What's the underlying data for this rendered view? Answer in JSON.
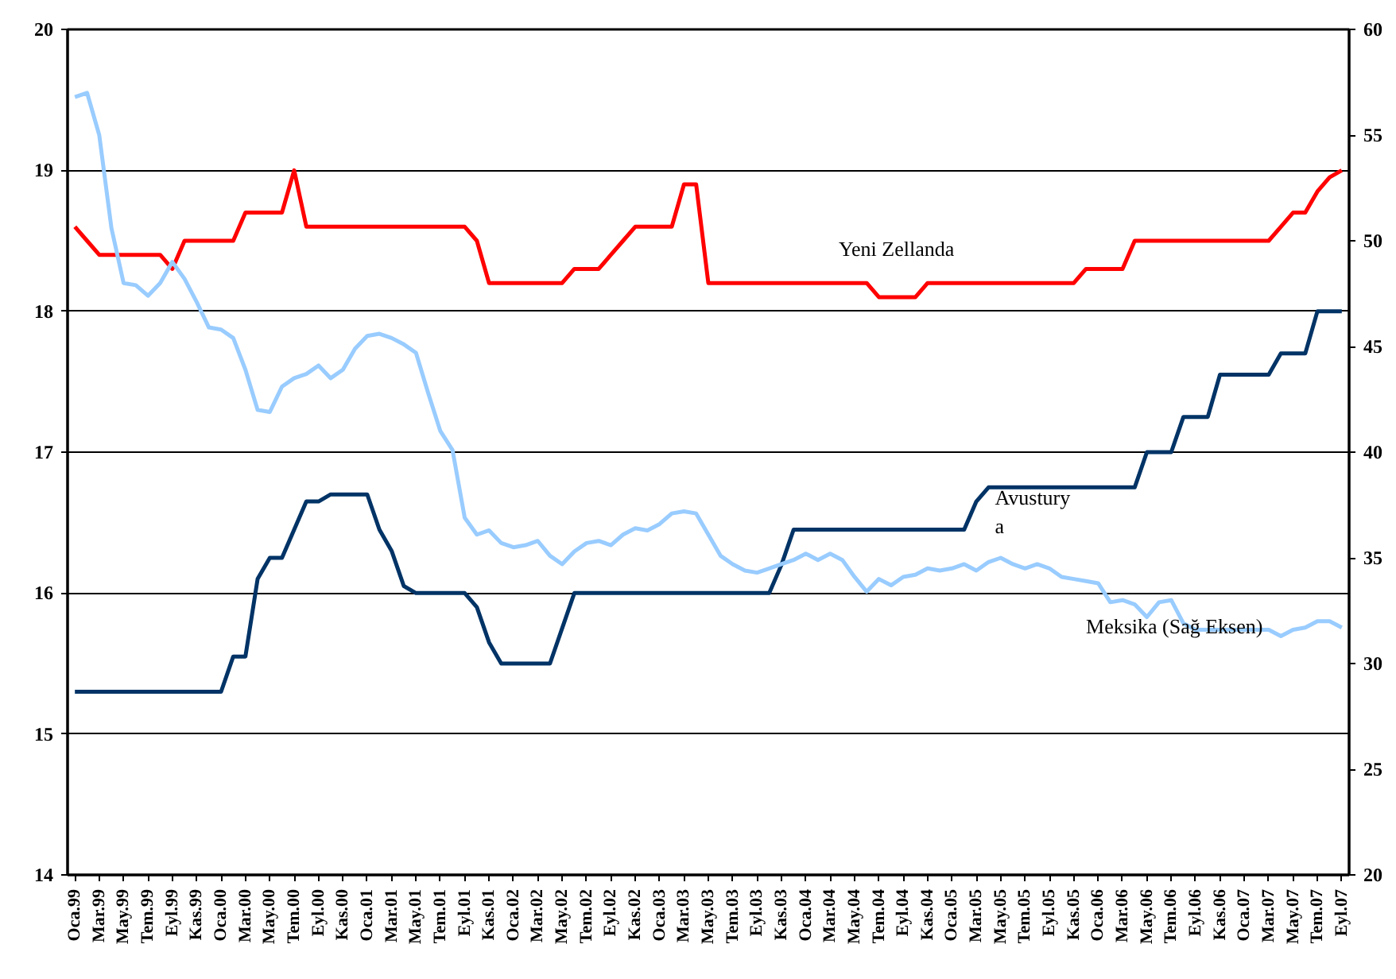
{
  "chart_data": {
    "type": "line",
    "categories": [
      "Oca.99",
      null,
      "Mar.99",
      null,
      "May.99",
      null,
      "Tem.99",
      null,
      "Eyl.99",
      null,
      "Kas.99",
      null,
      "Oca.00",
      null,
      "Mar.00",
      null,
      "May.00",
      null,
      "Tem.00",
      null,
      "Eyl.00",
      null,
      "Kas.00",
      null,
      "Oca.01",
      null,
      "Mar.01",
      null,
      "May.01",
      null,
      "Tem.01",
      null,
      "Eyl.01",
      null,
      "Kas.01",
      null,
      "Oca.02",
      null,
      "Mar.02",
      null,
      "May.02",
      null,
      "Tem.02",
      null,
      "Eyl.02",
      null,
      "Kas.02",
      null,
      "Oca.03",
      null,
      "Mar.03",
      null,
      "May.03",
      null,
      "Tem.03",
      null,
      "Eyl.03",
      null,
      "Kas.03",
      null,
      "Oca.04",
      null,
      "Mar.04",
      null,
      "May.04",
      null,
      "Tem.04",
      null,
      "Eyl.04",
      null,
      "Kas.04",
      null,
      "Oca.05",
      null,
      "Mar.05",
      null,
      "May.05",
      null,
      "Tem.05",
      null,
      "Eyl.05",
      null,
      "Kas.05",
      null,
      "Oca.06",
      null,
      "Mar.06",
      null,
      "May.06",
      null,
      "Tem.06",
      null,
      "Eyl.06",
      null,
      "Kas.06",
      null,
      "Oca.07",
      null,
      "Mar.07",
      null,
      "May.07",
      null,
      "Tem.07",
      null,
      "Eyl.07"
    ],
    "series": [
      {
        "name": "Yeni Zellanda",
        "color": "#ff0000",
        "values": [
          18.6,
          18.5,
          18.4,
          18.4,
          18.4,
          18.4,
          18.4,
          18.4,
          18.3,
          18.5,
          18.5,
          18.5,
          18.5,
          18.5,
          18.7,
          18.7,
          18.7,
          18.7,
          19.0,
          18.6,
          18.6,
          18.6,
          18.6,
          18.6,
          18.6,
          18.6,
          18.6,
          18.6,
          18.6,
          18.6,
          18.6,
          18.6,
          18.6,
          18.5,
          18.2,
          18.2,
          18.2,
          18.2,
          18.2,
          18.2,
          18.2,
          18.3,
          18.3,
          18.3,
          18.4,
          18.5,
          18.6,
          18.6,
          18.6,
          18.6,
          18.9,
          18.9,
          18.2,
          18.2,
          18.2,
          18.2,
          18.2,
          18.2,
          18.2,
          18.2,
          18.2,
          18.2,
          18.2,
          18.2,
          18.2,
          18.2,
          18.1,
          18.1,
          18.1,
          18.1,
          18.2,
          18.2,
          18.2,
          18.2,
          18.2,
          18.2,
          18.2,
          18.2,
          18.2,
          18.2,
          18.2,
          18.2,
          18.2,
          18.3,
          18.3,
          18.3,
          18.3,
          18.5,
          18.5,
          18.5,
          18.5,
          18.5,
          18.5,
          18.5,
          18.5,
          18.5,
          18.5,
          18.5,
          18.5,
          18.6,
          18.7,
          18.7,
          18.85,
          18.95,
          19.0
        ]
      },
      {
        "name": "Avustury\na",
        "color": "#003366",
        "values": [
          15.3,
          15.3,
          15.3,
          15.3,
          15.3,
          15.3,
          15.3,
          15.3,
          15.3,
          15.3,
          15.3,
          15.3,
          15.3,
          15.55,
          15.55,
          16.1,
          16.25,
          16.25,
          16.45,
          16.65,
          16.65,
          16.7,
          16.7,
          16.7,
          16.7,
          16.45,
          16.3,
          16.05,
          16.0,
          16.0,
          16.0,
          16.0,
          16.0,
          15.9,
          15.65,
          15.5,
          15.5,
          15.5,
          15.5,
          15.5,
          15.75,
          16.0,
          16.0,
          16.0,
          16.0,
          16.0,
          16.0,
          16.0,
          16.0,
          16.0,
          16.0,
          16.0,
          16.0,
          16.0,
          16.0,
          16.0,
          16.0,
          16.0,
          16.2,
          16.45,
          16.45,
          16.45,
          16.45,
          16.45,
          16.45,
          16.45,
          16.45,
          16.45,
          16.45,
          16.45,
          16.45,
          16.45,
          16.45,
          16.45,
          16.65,
          16.75,
          16.75,
          16.75,
          16.75,
          16.75,
          16.75,
          16.75,
          16.75,
          16.75,
          16.75,
          16.75,
          16.75,
          16.75,
          17.0,
          17.0,
          17.0,
          17.25,
          17.25,
          17.25,
          17.55,
          17.55,
          17.55,
          17.55,
          17.55,
          17.7,
          17.7,
          17.7,
          18.0,
          18.0,
          18.0
        ]
      },
      {
        "name": "Meksika (Sağ Eksen)",
        "color": "#99ccff",
        "axis": "y2",
        "values": [
          56.8,
          57.0,
          55.0,
          50.6,
          48.0,
          47.9,
          47.4,
          48.0,
          49.0,
          48.2,
          47.1,
          45.9,
          45.8,
          45.4,
          43.9,
          42.0,
          41.9,
          43.1,
          43.5,
          43.7,
          44.1,
          43.5,
          43.9,
          44.9,
          45.5,
          45.6,
          45.4,
          45.1,
          44.7,
          42.8,
          41.0,
          40.1,
          36.9,
          36.1,
          36.3,
          35.7,
          35.5,
          35.6,
          35.8,
          35.1,
          34.7,
          35.3,
          35.7,
          35.8,
          35.6,
          36.1,
          36.4,
          36.3,
          36.6,
          37.1,
          37.2,
          37.1,
          36.1,
          35.1,
          34.7,
          34.4,
          34.3,
          34.5,
          34.7,
          34.9,
          35.2,
          34.9,
          35.2,
          34.9,
          34.1,
          33.4,
          34.0,
          33.7,
          34.1,
          34.2,
          34.5,
          34.4,
          34.5,
          34.7,
          34.4,
          34.8,
          35.0,
          34.7,
          34.5,
          34.7,
          34.5,
          34.1,
          34.0,
          33.9,
          33.8,
          32.9,
          33.0,
          32.8,
          32.2,
          32.9,
          33.0,
          31.9,
          31.6,
          31.6,
          31.6,
          31.6,
          31.6,
          31.6,
          31.6,
          31.3,
          31.6,
          31.7,
          32.0,
          32.0,
          31.7
        ]
      }
    ],
    "ylim": [
      14,
      20
    ],
    "yticks": [
      14,
      15,
      16,
      17,
      18,
      19,
      20
    ],
    "y2lim": [
      20,
      60
    ],
    "y2ticks": [
      20,
      25,
      30,
      35,
      40,
      45,
      50,
      55,
      60
    ],
    "grid": "y"
  }
}
